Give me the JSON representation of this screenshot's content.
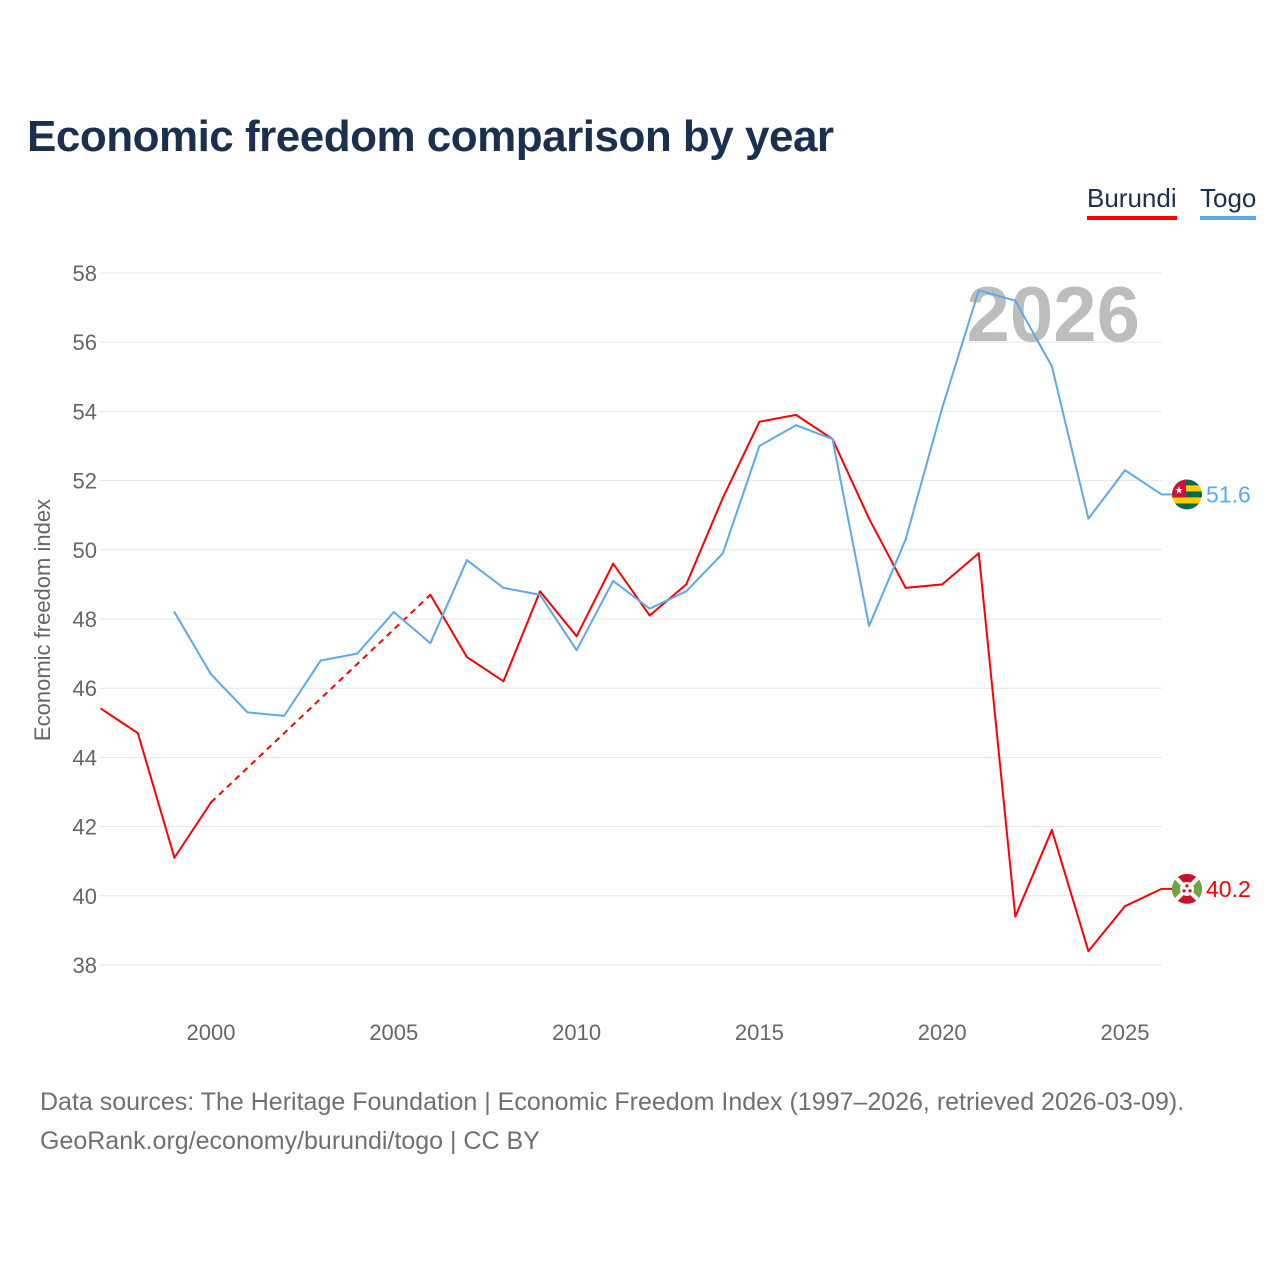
{
  "chart_data": {
    "type": "line",
    "title": "Economic freedom comparison by year",
    "ylabel": "Economic freedom index",
    "xlabel": "",
    "ylim": [
      37,
      59
    ],
    "xlim": [
      1997,
      2026
    ],
    "yticks": [
      38,
      40,
      42,
      44,
      46,
      48,
      50,
      52,
      54,
      56,
      58
    ],
    "xticks": [
      2000,
      2005,
      2010,
      2015,
      2020,
      2025
    ],
    "grid": true,
    "legend_placement": "top-right",
    "year_watermark": "2026",
    "x": [
      1997,
      1998,
      1999,
      2000,
      2001,
      2002,
      2003,
      2004,
      2005,
      2006,
      2007,
      2008,
      2009,
      2010,
      2011,
      2012,
      2013,
      2014,
      2015,
      2016,
      2017,
      2018,
      2019,
      2020,
      2021,
      2022,
      2023,
      2024,
      2025,
      2026
    ],
    "series": [
      {
        "name": "Burundi",
        "color": "#ff0000",
        "end_label": "40.2",
        "flag": "burundi-flag",
        "values": [
          45.4,
          44.7,
          41.1,
          42.7,
          null,
          null,
          null,
          null,
          null,
          48.7,
          46.9,
          46.2,
          48.8,
          47.5,
          49.6,
          48.1,
          49.0,
          51.5,
          53.7,
          53.9,
          53.2,
          50.9,
          48.9,
          49.0,
          49.9,
          39.4,
          41.9,
          38.4,
          39.7,
          40.2
        ]
      },
      {
        "name": "Togo",
        "color": "#5ea9ec",
        "end_label": "51.6",
        "flag": "togo-flag",
        "values": [
          null,
          null,
          48.2,
          46.4,
          45.3,
          45.2,
          46.8,
          47.0,
          48.2,
          47.3,
          49.7,
          48.9,
          48.7,
          47.1,
          49.1,
          48.3,
          48.8,
          49.9,
          53.0,
          53.6,
          53.2,
          47.8,
          50.3,
          54.1,
          57.5,
          57.2,
          55.3,
          50.9,
          52.3,
          51.6
        ]
      }
    ]
  },
  "sources": {
    "line1": "Data sources: The Heritage Foundation | Economic Freedom Index (1997–2026, retrieved 2026-03-09).",
    "line2": "GeoRank.org/economy/burundi/togo | CC BY"
  }
}
